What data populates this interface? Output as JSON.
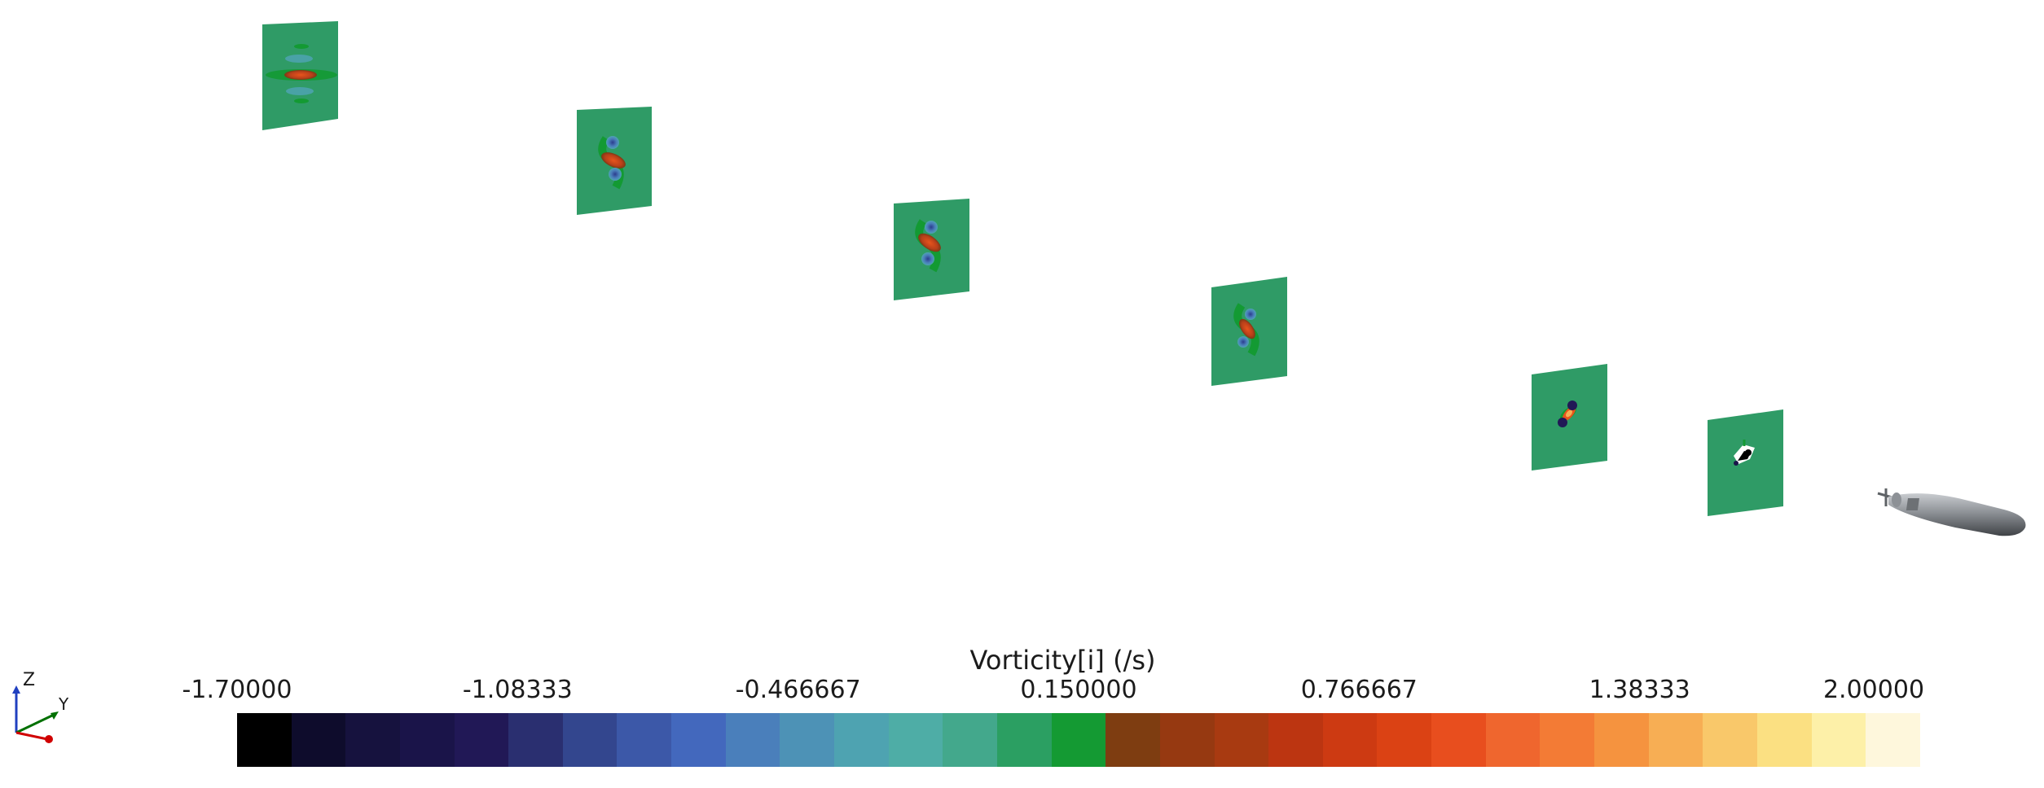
{
  "viewport": {
    "background": "#ffffff",
    "vortex_planes": [
      {
        "name": "plane-1",
        "pattern": "symmetric"
      },
      {
        "name": "plane-2",
        "pattern": "s-vortex"
      },
      {
        "name": "plane-3",
        "pattern": "s-vortex"
      },
      {
        "name": "plane-4",
        "pattern": "s-vortex"
      },
      {
        "name": "plane-5",
        "pattern": "s-vortex-strong"
      },
      {
        "name": "plane-6",
        "pattern": "near-wake"
      }
    ],
    "model": "submarine-hull"
  },
  "legend": {
    "title": "Vorticity[i] (/s)",
    "ticks": [
      "-1.70000",
      "-1.08333",
      "-0.466667",
      "0.150000",
      "0.766667",
      "1.38333",
      "2.00000"
    ],
    "min": -1.7,
    "max": 2.0,
    "colors": [
      "#000000",
      "#0e0c2c",
      "#16123e",
      "#1a1449",
      "#211856",
      "#2a2f70",
      "#33468e",
      "#3c58a8",
      "#4368bd",
      "#4a7fbb",
      "#4d92b6",
      "#4ea3b1",
      "#4eada6",
      "#43a88c",
      "#2b9f62",
      "#149a33",
      "#7e3d11",
      "#963911",
      "#a83a11",
      "#bc3511",
      "#cd3a12",
      "#db4214",
      "#e84e1e",
      "#ef662e",
      "#f37b35",
      "#f5933f",
      "#f7ae54",
      "#f9c86a",
      "#fbe082",
      "#fdf0a8",
      "#fef7dc"
    ]
  },
  "axes_triad": {
    "z": "Z",
    "y": "Y",
    "x_color": "#d00000",
    "y_color": "#007000",
    "z_color": "#2040c0"
  }
}
